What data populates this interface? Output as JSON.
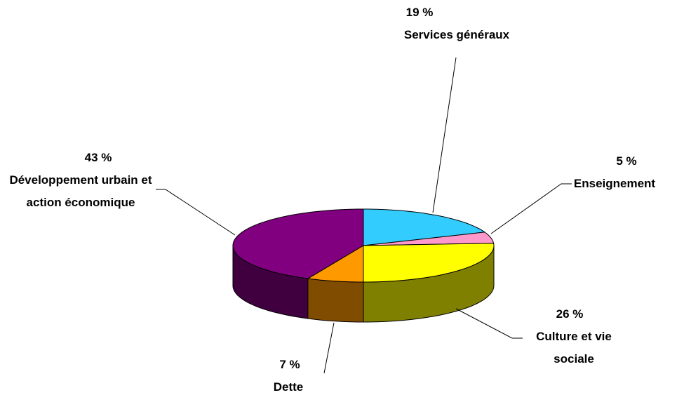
{
  "chart_data": {
    "type": "pie3d",
    "categories": [
      "Services généraux",
      "Enseignement",
      "Culture et vie sociale",
      "Dette",
      "Développement urbain et action économique"
    ],
    "values": [
      19,
      5,
      26,
      7,
      43
    ],
    "value_labels": [
      "19 %",
      "5 %",
      "26 %",
      "7 %",
      "43 %"
    ],
    "colors": [
      "#33ccff",
      "#ff99cc",
      "#ffff00",
      "#ff9900",
      "#800080"
    ],
    "side_colors": [
      "#1a6680",
      "#804c66",
      "#808000",
      "#804c00",
      "#400040"
    ]
  }
}
